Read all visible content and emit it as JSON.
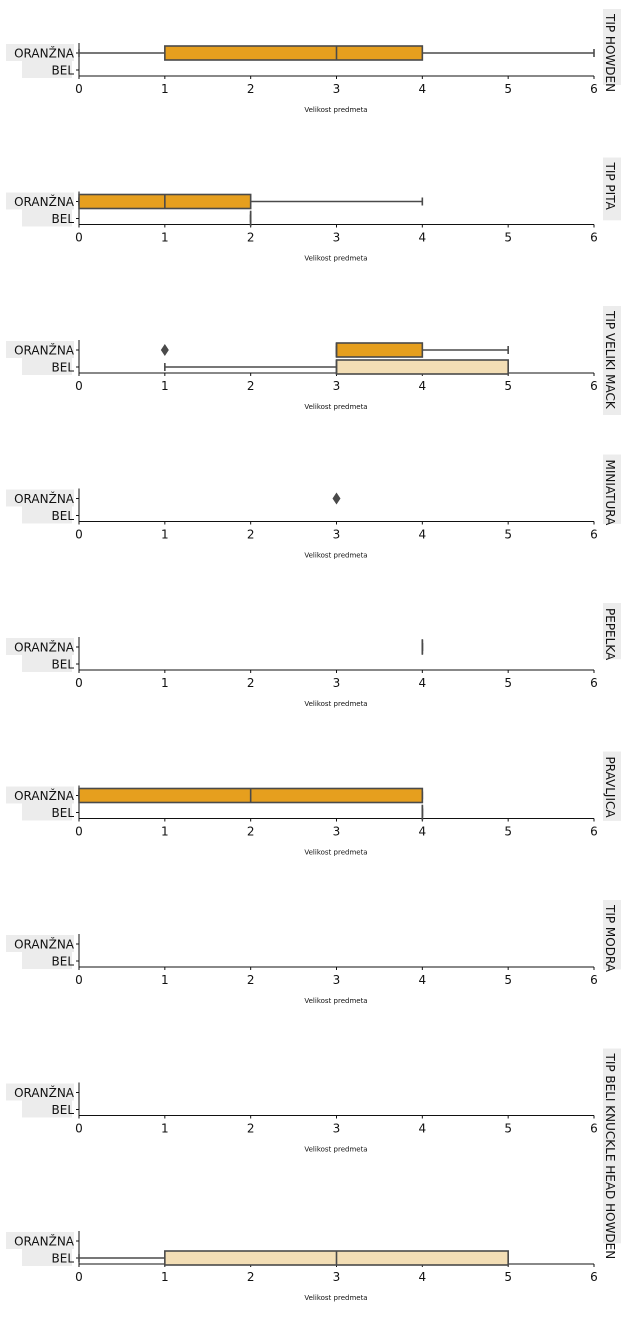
{
  "colors": {
    "oranzna": "#E69F1E",
    "bel": "#F3DEB5",
    "line": "#4a4a4a",
    "label_bg": "#ececec",
    "axis": "#111111"
  },
  "chart_data": [
    {
      "type": "boxplot",
      "title": "TIP HOWDEN",
      "xlabel": "Velikost predmeta",
      "categories": [
        "ORANŽNA",
        "BEL"
      ],
      "xlim": [
        0,
        6
      ],
      "xticks": [
        "0",
        "1",
        "2",
        "3",
        "4",
        "5",
        "6"
      ],
      "series": [
        {
          "name": "ORANŽNA",
          "box": {
            "min": 0,
            "q1": 1,
            "median": 3,
            "q3": 4,
            "max": 6
          },
          "outliers": []
        },
        {
          "name": "BEL",
          "box": null,
          "outliers": []
        }
      ]
    },
    {
      "type": "boxplot",
      "title": "TIP PITA",
      "xlabel": "Velikost predmeta",
      "categories": [
        "ORANŽNA",
        "BEL"
      ],
      "xlim": [
        0,
        6
      ],
      "xticks": [
        "0",
        "1",
        "2",
        "3",
        "4",
        "5",
        "6"
      ],
      "series": [
        {
          "name": "ORANŽNA",
          "box": {
            "min": 0,
            "q1": 0,
            "median": 1,
            "q3": 2,
            "max": 4
          },
          "outliers": []
        },
        {
          "name": "BEL",
          "box": {
            "min": 2,
            "q1": 2,
            "median": 2,
            "q3": 2,
            "max": 2
          },
          "outliers": []
        }
      ]
    },
    {
      "type": "boxplot",
      "title": "TIP VELIKI MACK",
      "xlabel": "Velikost predmeta",
      "categories": [
        "ORANŽNA",
        "BEL"
      ],
      "xlim": [
        0,
        6
      ],
      "xticks": [
        "0",
        "1",
        "2",
        "3",
        "4",
        "5",
        "6"
      ],
      "series": [
        {
          "name": "ORANŽNA",
          "box": {
            "min": 3,
            "q1": 3,
            "median": 3,
            "q3": 4,
            "max": 5
          },
          "outliers": [
            1
          ]
        },
        {
          "name": "BEL",
          "box": {
            "min": 1,
            "q1": 3,
            "median": 3,
            "q3": 5,
            "max": 5
          },
          "outliers": []
        }
      ]
    },
    {
      "type": "boxplot",
      "title": "MINIATURA",
      "xlabel": "Velikost predmeta",
      "categories": [
        "ORANŽNA",
        "BEL"
      ],
      "xlim": [
        0,
        6
      ],
      "xticks": [
        "0",
        "1",
        "2",
        "3",
        "4",
        "5",
        "6"
      ],
      "series": [
        {
          "name": "ORANŽNA",
          "box": null,
          "outliers": [
            3
          ]
        },
        {
          "name": "BEL",
          "box": null,
          "outliers": []
        }
      ]
    },
    {
      "type": "boxplot",
      "title": "PEPELKA",
      "xlabel": "Velikost predmeta",
      "categories": [
        "ORANŽNA",
        "BEL"
      ],
      "xlim": [
        0,
        6
      ],
      "xticks": [
        "0",
        "1",
        "2",
        "3",
        "4",
        "5",
        "6"
      ],
      "series": [
        {
          "name": "ORANŽNA",
          "box": {
            "min": 4,
            "q1": 4,
            "median": 4,
            "q3": 4,
            "max": 4
          },
          "outliers": []
        },
        {
          "name": "BEL",
          "box": null,
          "outliers": []
        }
      ]
    },
    {
      "type": "boxplot",
      "title": "PRAVLJICA",
      "xlabel": "Velikost predmeta",
      "categories": [
        "ORANŽNA",
        "BEL"
      ],
      "xlim": [
        0,
        6
      ],
      "xticks": [
        "0",
        "1",
        "2",
        "3",
        "4",
        "5",
        "6"
      ],
      "series": [
        {
          "name": "ORANŽNA",
          "box": {
            "min": 0,
            "q1": 0,
            "median": 2,
            "q3": 4,
            "max": 4
          },
          "outliers": []
        },
        {
          "name": "BEL",
          "box": {
            "min": 4,
            "q1": 4,
            "median": 4,
            "q3": 4,
            "max": 4
          },
          "outliers": []
        }
      ]
    },
    {
      "type": "boxplot",
      "title": "TIP MODRA",
      "xlabel": "Velikost predmeta",
      "categories": [
        "ORANŽNA",
        "BEL"
      ],
      "xlim": [
        0,
        6
      ],
      "xticks": [
        "0",
        "1",
        "2",
        "3",
        "4",
        "5",
        "6"
      ],
      "series": [
        {
          "name": "ORANŽNA",
          "box": null,
          "outliers": []
        },
        {
          "name": "BEL",
          "box": null,
          "outliers": []
        }
      ]
    },
    {
      "type": "boxplot",
      "title": "TIP BELI KNUCKLE HEAD HOWDEN",
      "xlabel": "Velikost predmeta",
      "categories": [
        "ORANŽNA",
        "BEL"
      ],
      "xlim": [
        0,
        6
      ],
      "xticks": [
        "0",
        "1",
        "2",
        "3",
        "4",
        "5",
        "6"
      ],
      "series": [
        {
          "name": "ORANŽNA",
          "box": null,
          "outliers": []
        },
        {
          "name": "BEL",
          "box": null,
          "outliers": []
        }
      ]
    },
    {
      "type": "boxplot",
      "title": "",
      "xlabel": "Velikost predmeta",
      "categories": [
        "ORANŽNA",
        "BEL"
      ],
      "xlim": [
        0,
        6
      ],
      "xticks": [
        "0",
        "1",
        "2",
        "3",
        "4",
        "5",
        "6"
      ],
      "series": [
        {
          "name": "ORANŽNA",
          "box": null,
          "outliers": []
        },
        {
          "name": "BEL",
          "box": {
            "min": 0,
            "q1": 1,
            "median": 3,
            "q3": 5,
            "max": 5
          },
          "outliers": []
        }
      ]
    }
  ]
}
